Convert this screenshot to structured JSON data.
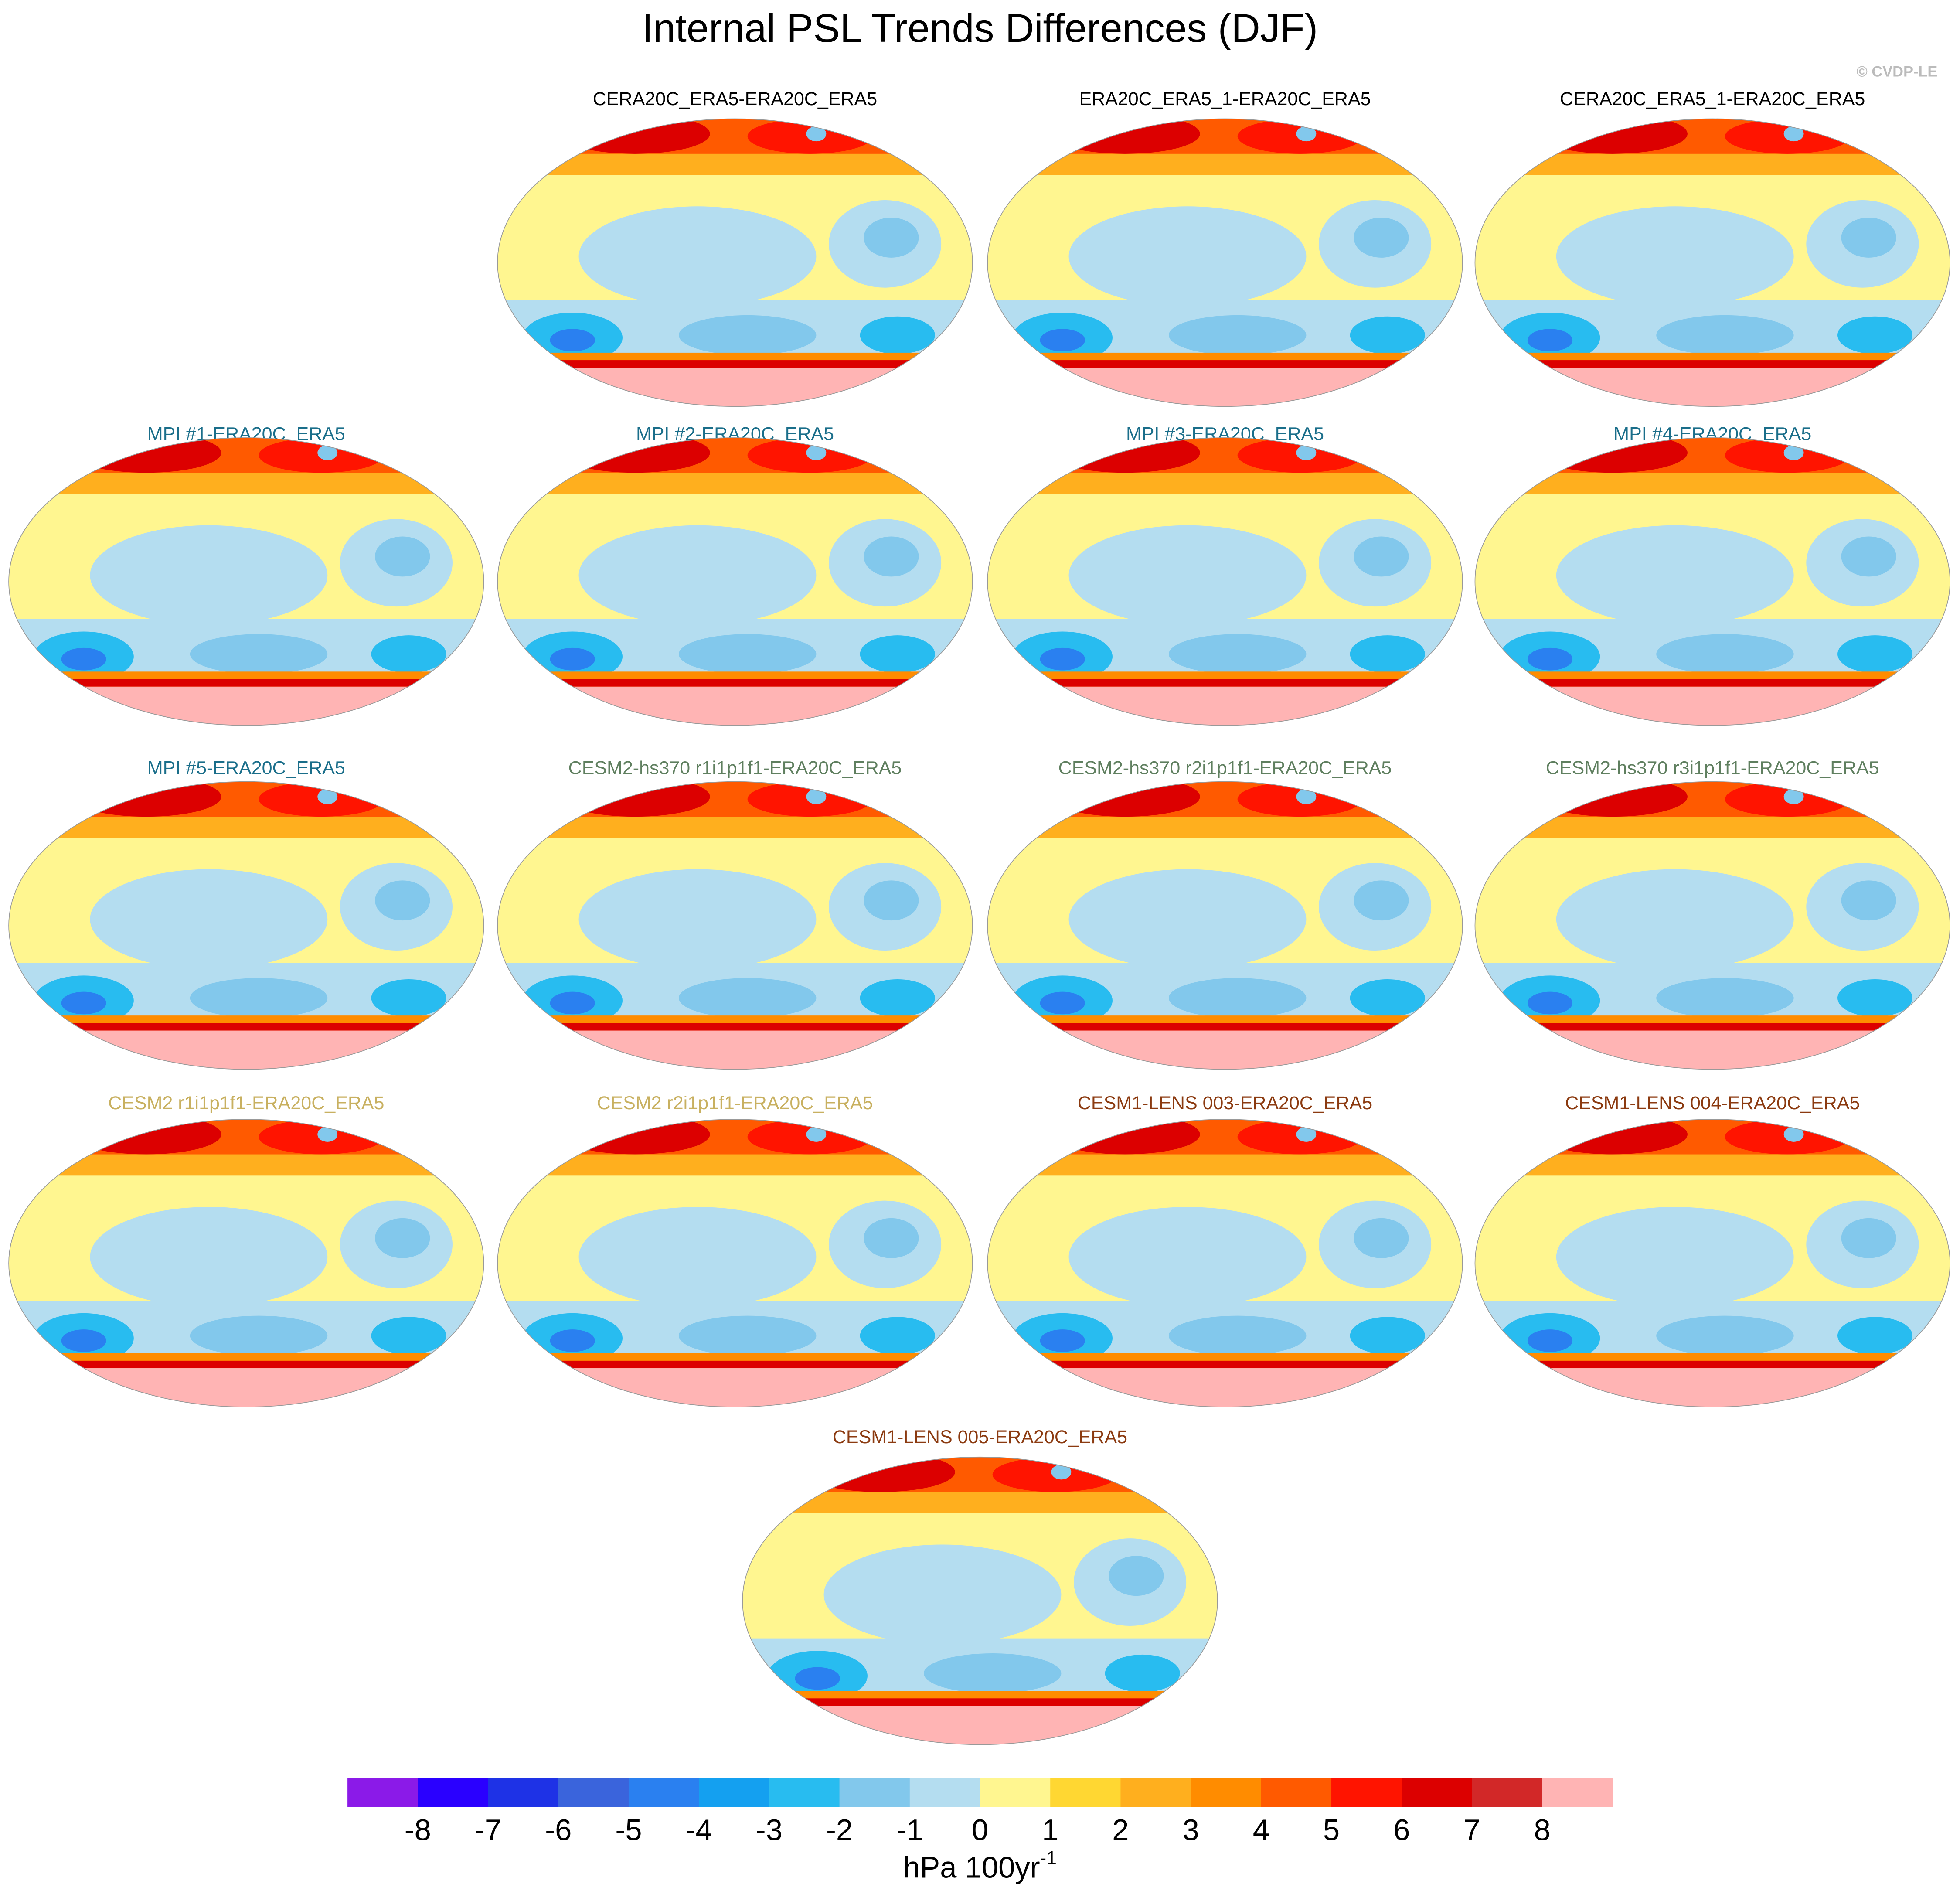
{
  "title": "Internal PSL Trends Differences (DJF)",
  "credit": "© CVDP-LE",
  "panels": [
    {
      "title": "CERA20C_ERA5-ERA20C_ERA5",
      "color": "#000000"
    },
    {
      "title": "ERA20C_ERA5_1-ERA20C_ERA5",
      "color": "#000000"
    },
    {
      "title": "CERA20C_ERA5_1-ERA20C_ERA5",
      "color": "#000000"
    },
    {
      "title": "MPI #1-ERA20C_ERA5",
      "color": "#1a6e8a"
    },
    {
      "title": "MPI #2-ERA20C_ERA5",
      "color": "#1a6e8a"
    },
    {
      "title": "MPI #3-ERA20C_ERA5",
      "color": "#1a6e8a"
    },
    {
      "title": "MPI #4-ERA20C_ERA5",
      "color": "#1a6e8a"
    },
    {
      "title": "MPI #5-ERA20C_ERA5",
      "color": "#1a6e8a"
    },
    {
      "title": "CESM2-hs370 r1i1p1f1-ERA20C_ERA5",
      "color": "#5f7f5f"
    },
    {
      "title": "CESM2-hs370 r2i1p1f1-ERA20C_ERA5",
      "color": "#5f7f5f"
    },
    {
      "title": "CESM2-hs370 r3i1p1f1-ERA20C_ERA5",
      "color": "#5f7f5f"
    },
    {
      "title": "CESM2 r1i1p1f1-ERA20C_ERA5",
      "color": "#c8b060"
    },
    {
      "title": "CESM2 r2i1p1f1-ERA20C_ERA5",
      "color": "#c8b060"
    },
    {
      "title": "CESM1-LENS 003-ERA20C_ERA5",
      "color": "#8b3a10"
    },
    {
      "title": "CESM1-LENS 004-ERA20C_ERA5",
      "color": "#8b3a10"
    },
    {
      "title": "CESM1-LENS 005-ERA20C_ERA5",
      "color": "#8b3a10"
    }
  ],
  "colorbar": {
    "colors": [
      "#8b1ae8",
      "#2a00ff",
      "#1e32e6",
      "#3a64dc",
      "#2a80f0",
      "#14a0f0",
      "#28bcf0",
      "#82c8ec",
      "#b4ddf0",
      "#fff690",
      "#ffd732",
      "#ffaf1e",
      "#ff8c00",
      "#ff5a00",
      "#ff1400",
      "#dc0000",
      "#d22828",
      "#ffb4b4"
    ],
    "ticks": [
      -8,
      -7,
      -6,
      -5,
      -4,
      -3,
      -2,
      -1,
      0,
      1,
      2,
      3,
      4,
      5,
      6,
      7,
      8
    ],
    "units": "hPa 100yr",
    "units_exponent": "-1"
  }
}
